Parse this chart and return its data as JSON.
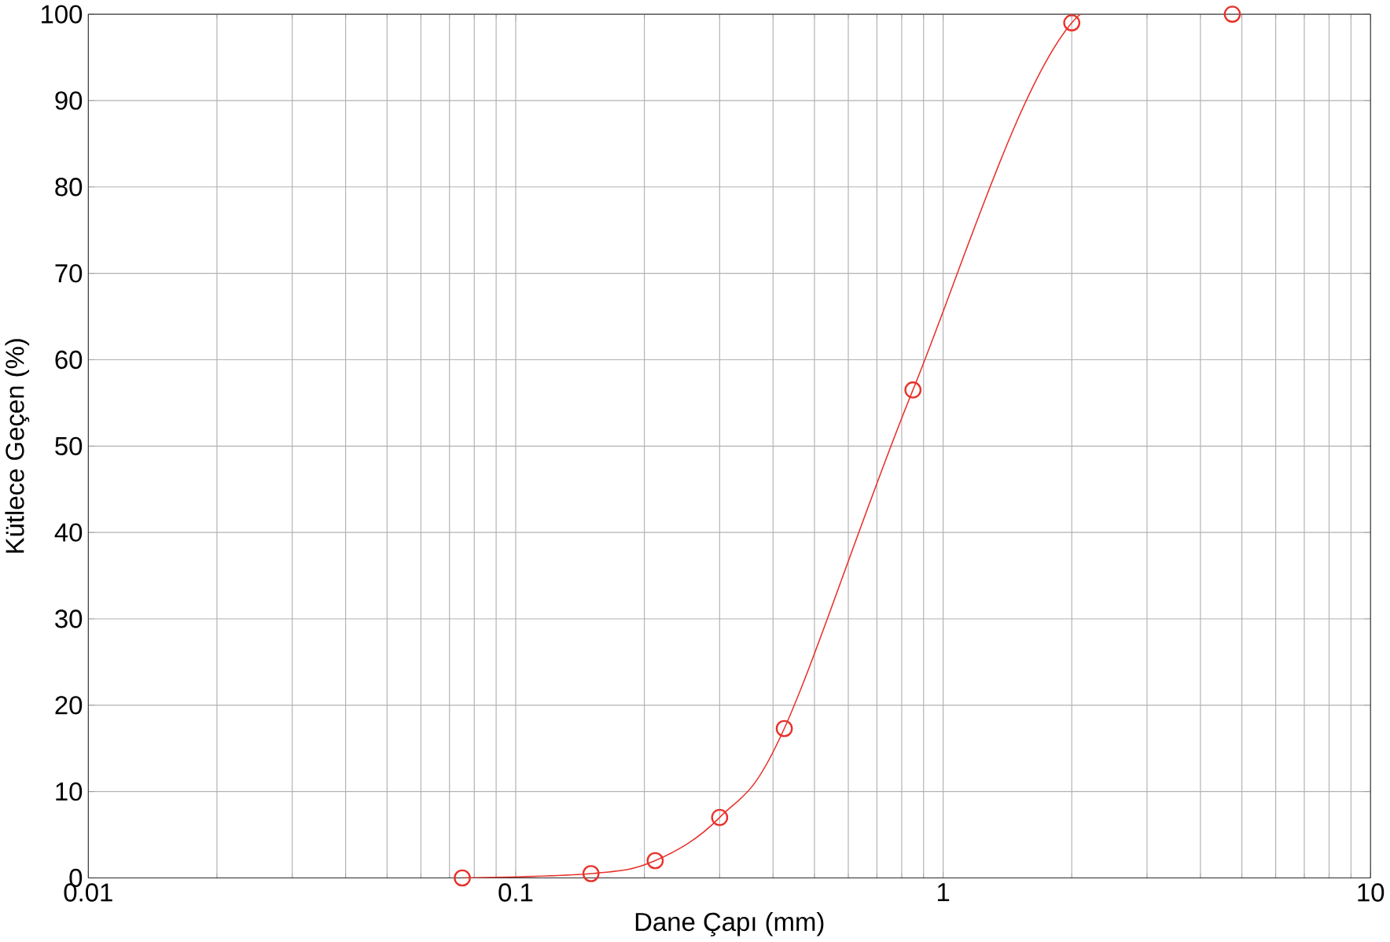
{
  "chart_data": {
    "type": "line",
    "xlabel": "Dane Çapı (mm)",
    "ylabel": "Kütlece Geçen (%)",
    "log": "x",
    "x": [
      0.075,
      0.15,
      0.212,
      0.3,
      0.425,
      0.85,
      2,
      4.75
    ],
    "series": [
      {
        "color": "#e8312a",
        "values": [
          0,
          0.5,
          2,
          7,
          17.3,
          56.5,
          99,
          100
        ]
      }
    ],
    "xlim": [
      0.01,
      10
    ],
    "xticks": [
      0.01,
      0.1,
      1,
      10
    ],
    "ylim": [
      0,
      100
    ],
    "yticks": [
      0,
      10,
      20,
      30,
      40,
      50,
      60,
      70,
      80,
      90,
      100
    ],
    "grid": true,
    "marker": "circle",
    "line_style": "solid"
  }
}
